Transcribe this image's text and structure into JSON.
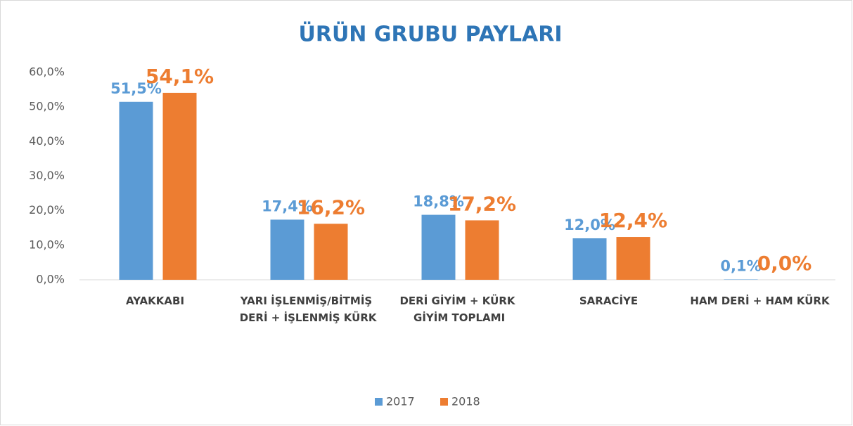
{
  "chart_data": {
    "type": "bar",
    "title": "ÜRÜN GRUBU PAYLARI",
    "categories": [
      "AYAKKABI",
      "YARI İŞLENMİŞ/BİTMİŞ DERİ + İŞLENMİŞ KÜRK",
      "DERİ GİYİM + KÜRK GİYİM TOPLAMI",
      "SARACİYE",
      "HAM DERİ + HAM KÜRK"
    ],
    "series": [
      {
        "name": "2017",
        "color": "#5b9bd5",
        "values": [
          51.5,
          17.4,
          18.8,
          12.0,
          0.1
        ],
        "value_labels": [
          "51,5%",
          "17,4%",
          "18,8%",
          "12,0%",
          "0,1%"
        ]
      },
      {
        "name": "2018",
        "color": "#ed7d31",
        "values": [
          54.1,
          16.2,
          17.2,
          12.4,
          0.0
        ],
        "value_labels": [
          "54,1%",
          "16,2%",
          "17,2%",
          "12,4%",
          "0,0%"
        ]
      }
    ],
    "ylim": [
      0,
      60
    ],
    "yticks": [
      {
        "value": 0,
        "label": "0,0%"
      },
      {
        "value": 10,
        "label": "10,0%"
      },
      {
        "value": 20,
        "label": "20,0%"
      },
      {
        "value": 30,
        "label": "30,0%"
      },
      {
        "value": 40,
        "label": "40,0%"
      },
      {
        "value": 50,
        "label": "50,0%"
      },
      {
        "value": 60,
        "label": "60,0%"
      }
    ],
    "legend": "bottom"
  }
}
